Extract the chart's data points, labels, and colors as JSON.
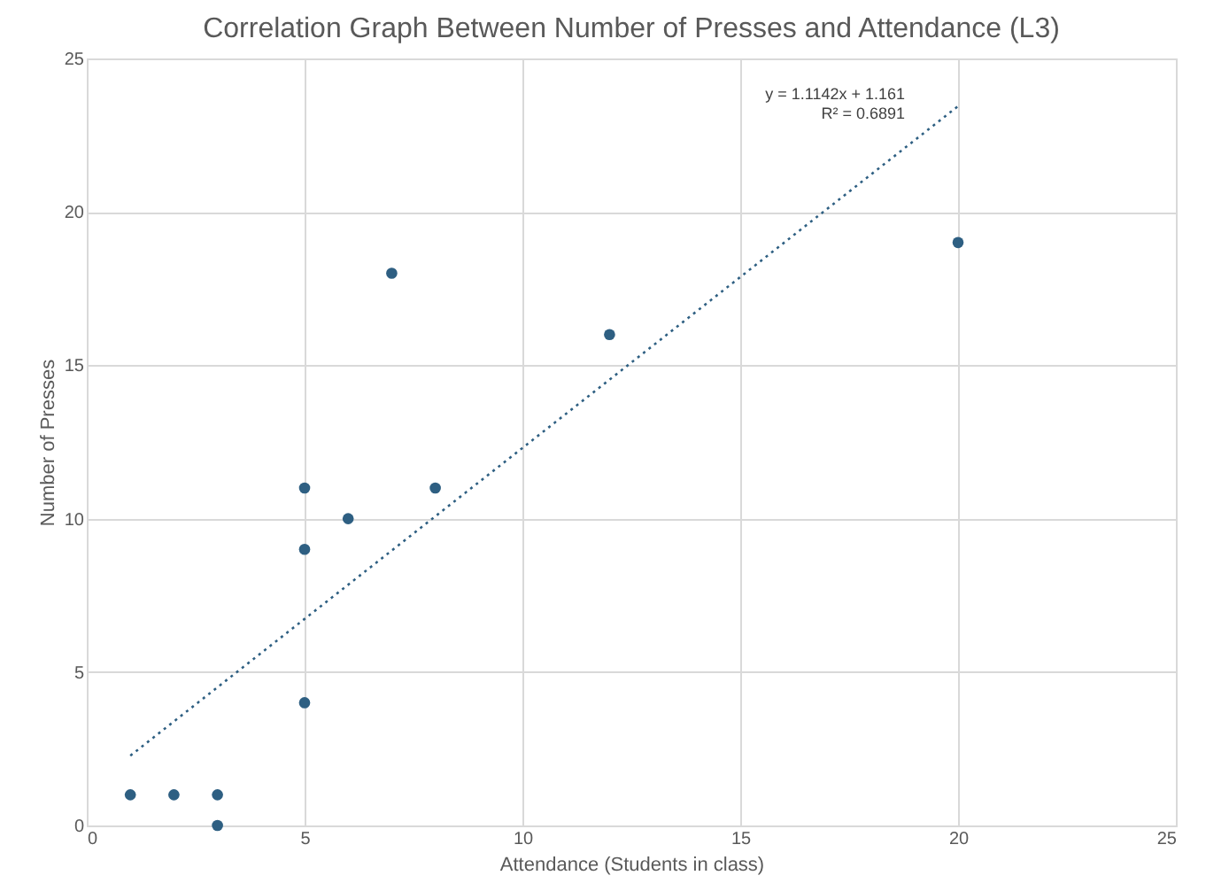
{
  "chart_data": {
    "type": "scatter",
    "title": "Correlation Graph Between Number of Presses and Attendance (L3)",
    "xlabel": "Attendance (Students in class)",
    "ylabel": "Number of Presses",
    "series": [
      {
        "type": "scatter",
        "color": "#2e5f82",
        "x": [
          1,
          2,
          3,
          3,
          5,
          5,
          5,
          6,
          7,
          8,
          12,
          20
        ],
        "values": [
          1,
          1,
          1,
          0,
          11,
          9,
          4,
          10,
          18,
          11,
          16,
          19
        ],
        "marker": "circle"
      },
      {
        "type": "line",
        "color": "#2e5f82",
        "x": [
          1,
          20
        ],
        "values": [
          2.2752,
          23.445
        ],
        "line_style": "dotted"
      }
    ],
    "annotations": [
      "y = 1.1142x + 1.161",
      "R² = 0.6891"
    ],
    "xlim": [
      0,
      25
    ],
    "xticks": [
      0,
      5,
      10,
      15,
      20,
      25
    ],
    "ylim": [
      0,
      25
    ],
    "yticks": [
      0,
      5,
      10,
      15,
      20,
      25
    ],
    "grid": true,
    "legend": false
  }
}
